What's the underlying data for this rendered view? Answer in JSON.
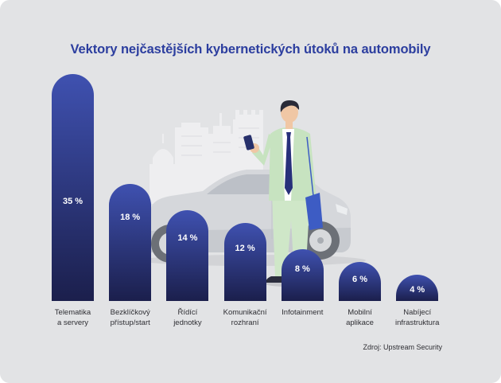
{
  "source": "Zdroj: Upstream Security",
  "colors": {
    "background": "#e2e3e5",
    "title": "#2c3e9f",
    "bar_top": "#3f51b0",
    "bar_bottom": "#1b1f4c",
    "bar_label": "#ffffff",
    "category_text": "#2e2e33"
  },
  "chart_data": {
    "type": "bar",
    "title": "Vektory nejčastějších kybernetických útoků na automobily",
    "categories": [
      "Telematika\na servery",
      "Bezklíčkový\npřístup/start",
      "Řídící\njednotky",
      "Komunikační\nrozhraní",
      "Infotainment",
      "Mobilní\naplikace",
      "Nabíjecí\ninfrastruktura"
    ],
    "values": [
      35,
      18,
      14,
      12,
      8,
      6,
      4
    ],
    "value_labels": [
      "35 %",
      "18 %",
      "14 %",
      "12 %",
      "8 %",
      "6 %",
      "4 %"
    ],
    "xlabel": "",
    "ylabel": "",
    "ylim": [
      0,
      35
    ],
    "grid": false
  }
}
